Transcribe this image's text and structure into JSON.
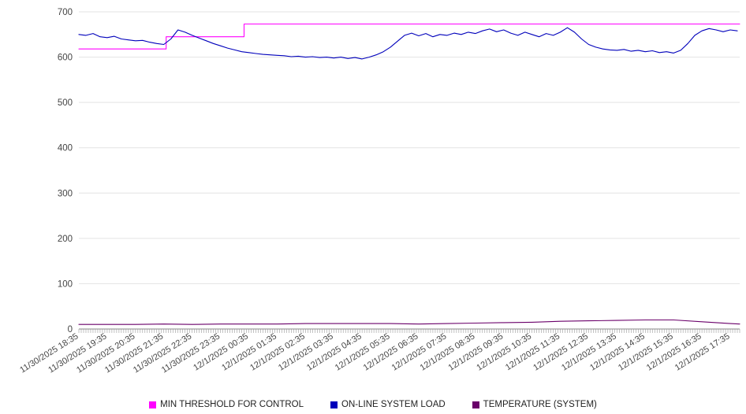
{
  "chart_data": {
    "type": "line",
    "title": "",
    "xlabel": "",
    "ylabel": "",
    "ylim": [
      0,
      700
    ],
    "yticks": [
      0,
      100,
      200,
      300,
      400,
      500,
      600,
      700
    ],
    "grid": "horizontal",
    "legend_position": "bottom",
    "x_minutes_range": [
      0,
      1400
    ],
    "x_tick_interval_minutes": 60,
    "minor_tick_interval_minutes": 5,
    "x_labels": [
      {
        "t": 0,
        "label": "11/30/2025 18:35"
      },
      {
        "t": 60,
        "label": "11/30/2025 19:35"
      },
      {
        "t": 120,
        "label": "11/30/2025 20:35"
      },
      {
        "t": 180,
        "label": "11/30/2025 21:35"
      },
      {
        "t": 240,
        "label": "11/30/2025 22:35"
      },
      {
        "t": 300,
        "label": "11/30/2025 23:35"
      },
      {
        "t": 360,
        "label": "12/1/2025 00:35"
      },
      {
        "t": 420,
        "label": "12/1/2025 01:35"
      },
      {
        "t": 480,
        "label": "12/1/2025 02:35"
      },
      {
        "t": 540,
        "label": "12/1/2025 03:35"
      },
      {
        "t": 600,
        "label": "12/1/2025 04:35"
      },
      {
        "t": 660,
        "label": "12/1/2025 05:35"
      },
      {
        "t": 720,
        "label": "12/1/2025 06:35"
      },
      {
        "t": 780,
        "label": "12/1/2025 07:35"
      },
      {
        "t": 840,
        "label": "12/1/2025 08:35"
      },
      {
        "t": 900,
        "label": "12/1/2025 09:35"
      },
      {
        "t": 960,
        "label": "12/1/2025 10:35"
      },
      {
        "t": 1020,
        "label": "12/1/2025 11:35"
      },
      {
        "t": 1080,
        "label": "12/1/2025 12:35"
      },
      {
        "t": 1140,
        "label": "12/1/2025 13:35"
      },
      {
        "t": 1200,
        "label": "12/1/2025 14:35"
      },
      {
        "t": 1260,
        "label": "12/1/2025 15:35"
      },
      {
        "t": 1320,
        "label": "12/1/2025 16:35"
      },
      {
        "t": 1380,
        "label": "12/1/2025 17:35"
      }
    ],
    "series": [
      {
        "name": "MIN THRESHOLD FOR CONTROL",
        "color": "#ff00ff",
        "shape": "step",
        "points": [
          [
            0,
            618
          ],
          [
            185,
            618
          ],
          [
            185,
            645
          ],
          [
            350,
            645
          ],
          [
            350,
            673
          ],
          [
            1400,
            673
          ]
        ]
      },
      {
        "name": "ON-LINE SYSTEM LOAD",
        "color": "#0000bb",
        "shape": "line",
        "points": [
          [
            0,
            650
          ],
          [
            15,
            648
          ],
          [
            30,
            652
          ],
          [
            45,
            645
          ],
          [
            60,
            643
          ],
          [
            75,
            646
          ],
          [
            90,
            640
          ],
          [
            105,
            638
          ],
          [
            120,
            636
          ],
          [
            135,
            637
          ],
          [
            150,
            633
          ],
          [
            165,
            630
          ],
          [
            180,
            628
          ],
          [
            195,
            640
          ],
          [
            210,
            660
          ],
          [
            225,
            655
          ],
          [
            240,
            648
          ],
          [
            255,
            642
          ],
          [
            270,
            636
          ],
          [
            285,
            630
          ],
          [
            300,
            625
          ],
          [
            315,
            620
          ],
          [
            330,
            616
          ],
          [
            345,
            612
          ],
          [
            360,
            610
          ],
          [
            375,
            608
          ],
          [
            390,
            606
          ],
          [
            405,
            605
          ],
          [
            420,
            604
          ],
          [
            435,
            603
          ],
          [
            450,
            601
          ],
          [
            465,
            602
          ],
          [
            480,
            600
          ],
          [
            495,
            601
          ],
          [
            510,
            599
          ],
          [
            525,
            600
          ],
          [
            540,
            598
          ],
          [
            555,
            600
          ],
          [
            570,
            597
          ],
          [
            585,
            599
          ],
          [
            600,
            596
          ],
          [
            615,
            600
          ],
          [
            630,
            605
          ],
          [
            645,
            612
          ],
          [
            660,
            622
          ],
          [
            675,
            635
          ],
          [
            690,
            648
          ],
          [
            705,
            653
          ],
          [
            720,
            647
          ],
          [
            735,
            652
          ],
          [
            750,
            645
          ],
          [
            765,
            650
          ],
          [
            780,
            648
          ],
          [
            795,
            653
          ],
          [
            810,
            650
          ],
          [
            825,
            655
          ],
          [
            840,
            652
          ],
          [
            855,
            658
          ],
          [
            870,
            662
          ],
          [
            885,
            656
          ],
          [
            900,
            660
          ],
          [
            915,
            653
          ],
          [
            930,
            648
          ],
          [
            945,
            655
          ],
          [
            960,
            650
          ],
          [
            975,
            645
          ],
          [
            990,
            652
          ],
          [
            1005,
            648
          ],
          [
            1020,
            655
          ],
          [
            1035,
            665
          ],
          [
            1050,
            655
          ],
          [
            1065,
            640
          ],
          [
            1080,
            628
          ],
          [
            1095,
            622
          ],
          [
            1110,
            618
          ],
          [
            1125,
            616
          ],
          [
            1140,
            615
          ],
          [
            1155,
            617
          ],
          [
            1170,
            613
          ],
          [
            1185,
            615
          ],
          [
            1200,
            612
          ],
          [
            1215,
            614
          ],
          [
            1230,
            610
          ],
          [
            1245,
            612
          ],
          [
            1260,
            609
          ],
          [
            1275,
            615
          ],
          [
            1290,
            630
          ],
          [
            1305,
            648
          ],
          [
            1320,
            658
          ],
          [
            1335,
            663
          ],
          [
            1350,
            660
          ],
          [
            1365,
            656
          ],
          [
            1380,
            660
          ],
          [
            1395,
            658
          ]
        ]
      },
      {
        "name": "TEMPERATURE (SYSTEM)",
        "color": "#6a006a",
        "shape": "line",
        "points": [
          [
            0,
            10
          ],
          [
            60,
            10
          ],
          [
            120,
            10
          ],
          [
            180,
            11
          ],
          [
            240,
            10
          ],
          [
            300,
            11
          ],
          [
            360,
            11
          ],
          [
            420,
            11
          ],
          [
            480,
            12
          ],
          [
            540,
            12
          ],
          [
            600,
            12
          ],
          [
            660,
            12
          ],
          [
            720,
            11
          ],
          [
            780,
            12
          ],
          [
            840,
            13
          ],
          [
            900,
            14
          ],
          [
            960,
            15
          ],
          [
            1020,
            17
          ],
          [
            1080,
            18
          ],
          [
            1140,
            19
          ],
          [
            1200,
            20
          ],
          [
            1260,
            20
          ],
          [
            1320,
            16
          ],
          [
            1380,
            12
          ],
          [
            1400,
            11
          ]
        ]
      }
    ],
    "style": {
      "grid_color": "#e3e3e3",
      "axis_color": "#888888",
      "tick_color": "#999999",
      "label_color": "#444444"
    }
  }
}
